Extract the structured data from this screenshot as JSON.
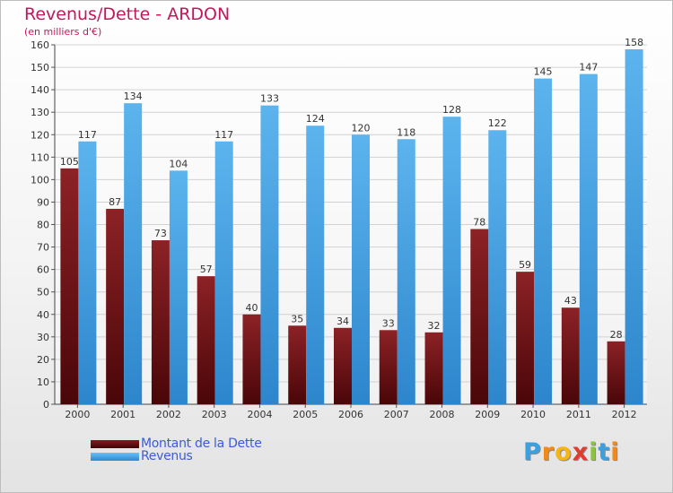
{
  "chart_data": {
    "type": "bar",
    "title": "Revenus/Dette - ARDON",
    "subtitle": "(en milliers d'€)",
    "categories": [
      "2000",
      "2001",
      "2002",
      "2003",
      "2004",
      "2005",
      "2006",
      "2007",
      "2008",
      "2009",
      "2010",
      "2011",
      "2012"
    ],
    "series": [
      {
        "name": "Montant de la Dette",
        "color": "#6b0f12",
        "values": [
          105,
          87,
          73,
          57,
          40,
          35,
          34,
          33,
          32,
          78,
          59,
          43,
          28
        ]
      },
      {
        "name": "Revenus",
        "color": "#3ea0e6",
        "values": [
          117,
          134,
          104,
          117,
          133,
          124,
          120,
          118,
          128,
          122,
          145,
          147,
          158
        ]
      }
    ],
    "ylim": [
      0,
      160
    ],
    "ytick_step": 10,
    "grid": true,
    "legend": "bottom-left"
  },
  "logo": {
    "letters": [
      "P",
      "r",
      "o",
      "x",
      "i",
      "t",
      "i"
    ],
    "colors": [
      "#3aa0e0",
      "#f08a1c",
      "#f5b417",
      "#e33c2d",
      "#8cc43f",
      "#3aa0e0",
      "#f08a1c"
    ]
  }
}
